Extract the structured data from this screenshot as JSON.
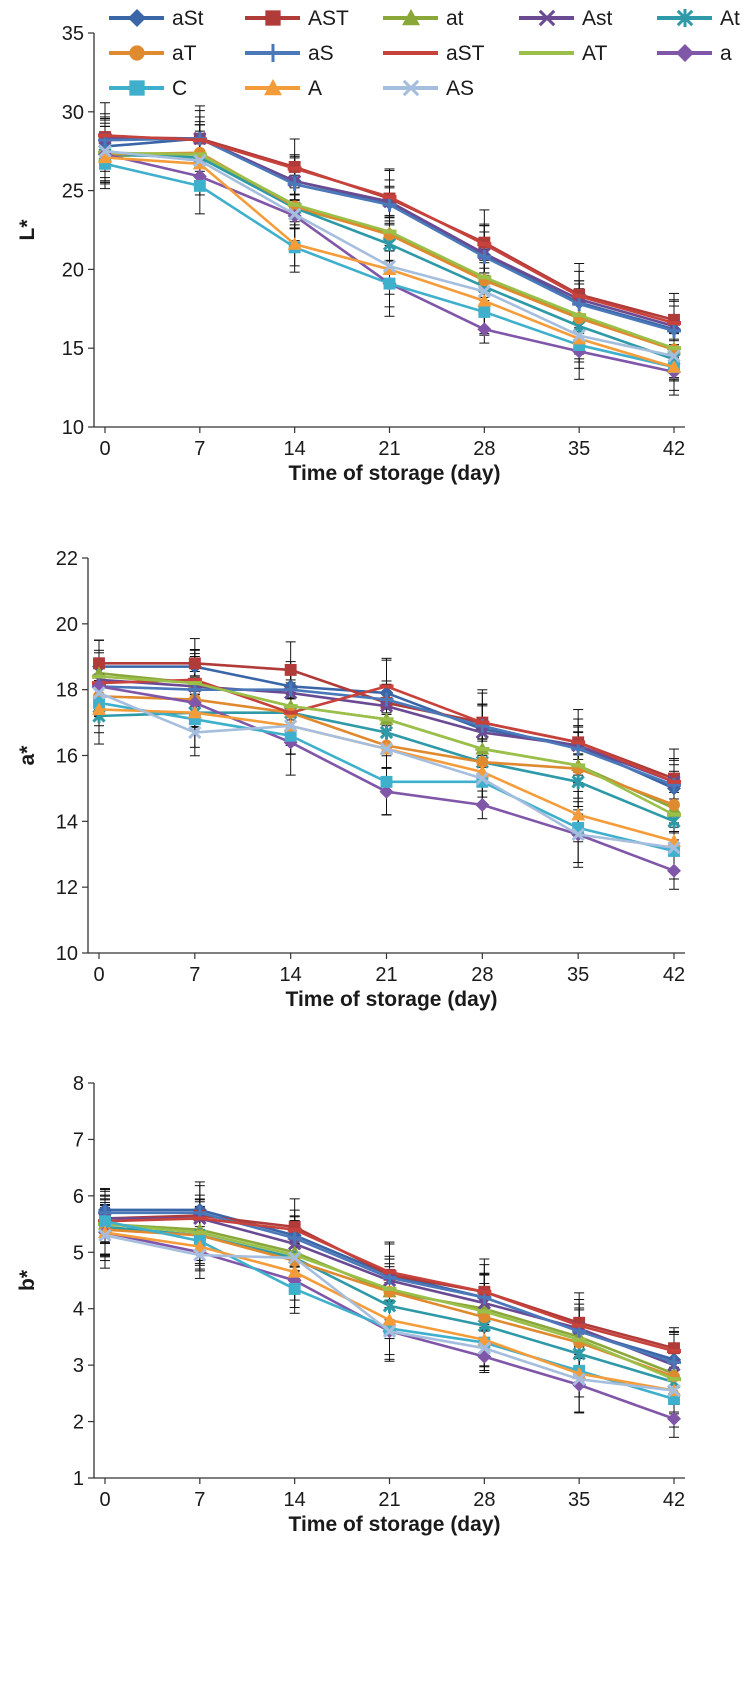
{
  "legend": [
    {
      "name": "aSt",
      "color": "#3a66a8",
      "marker": "diamond"
    },
    {
      "name": "AST",
      "color": "#b03b38",
      "marker": "square"
    },
    {
      "name": "at",
      "color": "#8aa83a",
      "marker": "triangle"
    },
    {
      "name": "Ast",
      "color": "#6a4a92",
      "marker": "x"
    },
    {
      "name": "At",
      "color": "#2e9aa8",
      "marker": "star"
    },
    {
      "name": "aT",
      "color": "#e08a30",
      "marker": "circle"
    },
    {
      "name": "aS",
      "color": "#4a78b8",
      "marker": "plus"
    },
    {
      "name": "aST",
      "color": "#c8423c",
      "marker": "dash"
    },
    {
      "name": "AT",
      "color": "#9ac04a",
      "marker": "dash"
    },
    {
      "name": "a",
      "color": "#8056a8",
      "marker": "diamond"
    },
    {
      "name": "C",
      "color": "#3fb0cc",
      "marker": "square"
    },
    {
      "name": "A",
      "color": "#f59c3a",
      "marker": "triangle"
    },
    {
      "name": "AS",
      "color": "#a6bede",
      "marker": "x"
    }
  ],
  "chart_data": [
    {
      "type": "line",
      "xlabel": "Time of storage (day)",
      "ylabel": "L*",
      "x": [
        0,
        7,
        14,
        21,
        28,
        35,
        42
      ],
      "xticks": [
        "0",
        "7",
        "14",
        "21",
        "28",
        "35",
        "42"
      ],
      "ylim": [
        10,
        35
      ],
      "yticks": [
        "10",
        "15",
        "20",
        "25",
        "30",
        "35"
      ],
      "grid": false,
      "legend": "top",
      "series": [
        {
          "name": "aSt",
          "values": [
            27.8,
            28.3,
            25.6,
            24.2,
            20.9,
            17.9,
            16.2
          ]
        },
        {
          "name": "AST",
          "values": [
            28.4,
            28.3,
            26.5,
            24.5,
            21.7,
            18.4,
            16.8
          ]
        },
        {
          "name": "at",
          "values": [
            27.2,
            27.3,
            23.9,
            22.3,
            19.4,
            17.0,
            15.0
          ]
        },
        {
          "name": "Ast",
          "values": [
            28.3,
            28.3,
            25.6,
            24.3,
            21.0,
            18.1,
            16.4
          ]
        },
        {
          "name": "At",
          "values": [
            27.3,
            27.1,
            23.9,
            21.6,
            18.9,
            16.4,
            14.3
          ]
        },
        {
          "name": "aT",
          "values": [
            27.3,
            27.4,
            24.0,
            22.2,
            19.3,
            16.9,
            14.9
          ]
        },
        {
          "name": "aS",
          "values": [
            28.2,
            28.3,
            25.4,
            24.1,
            20.8,
            17.8,
            16.1
          ]
        },
        {
          "name": "aST",
          "values": [
            28.5,
            28.2,
            26.4,
            24.6,
            21.6,
            18.3,
            16.6
          ]
        },
        {
          "name": "AT",
          "values": [
            27.4,
            27.3,
            24.1,
            22.4,
            19.5,
            17.1,
            15.0
          ]
        },
        {
          "name": "a",
          "values": [
            27.3,
            25.9,
            23.4,
            19.1,
            16.2,
            14.8,
            13.5
          ]
        },
        {
          "name": "C",
          "values": [
            26.7,
            25.3,
            21.4,
            19.1,
            17.3,
            15.2,
            13.8
          ]
        },
        {
          "name": "A",
          "values": [
            27.1,
            26.7,
            21.6,
            20.0,
            18.0,
            15.6,
            13.8
          ]
        },
        {
          "name": "AS",
          "values": [
            27.5,
            26.9,
            23.5,
            20.2,
            18.6,
            15.8,
            14.5
          ]
        }
      ]
    },
    {
      "type": "line",
      "xlabel": "Time of storage (day)",
      "ylabel": "a*",
      "x": [
        0,
        7,
        14,
        21,
        28,
        35,
        42
      ],
      "xticks": [
        "0",
        "7",
        "14",
        "21",
        "28",
        "35",
        "42"
      ],
      "ylim": [
        10,
        22
      ],
      "yticks": [
        "10",
        "12",
        "14",
        "16",
        "18",
        "20",
        "22"
      ],
      "grid": false,
      "series": [
        {
          "name": "aSt",
          "values": [
            18.7,
            18.7,
            18.1,
            17.9,
            16.8,
            16.3,
            15.0
          ]
        },
        {
          "name": "AST",
          "values": [
            18.8,
            18.8,
            18.6,
            17.6,
            17.0,
            16.4,
            15.3
          ]
        },
        {
          "name": "at",
          "values": [
            18.5,
            18.2,
            17.5,
            17.1,
            16.2,
            15.7,
            14.4
          ]
        },
        {
          "name": "Ast",
          "values": [
            18.3,
            18.1,
            17.9,
            17.5,
            16.7,
            16.3,
            15.2
          ]
        },
        {
          "name": "At",
          "values": [
            17.2,
            17.3,
            17.3,
            16.7,
            15.8,
            15.2,
            14.0
          ]
        },
        {
          "name": "aT",
          "values": [
            17.8,
            17.7,
            17.3,
            16.3,
            15.8,
            15.6,
            14.5
          ]
        },
        {
          "name": "aS",
          "values": [
            18.1,
            18.0,
            18.0,
            17.7,
            16.9,
            16.2,
            15.1
          ]
        },
        {
          "name": "aST",
          "values": [
            18.2,
            18.3,
            17.3,
            18.1,
            17.0,
            16.4,
            15.2
          ]
        },
        {
          "name": "AT",
          "values": [
            18.4,
            18.2,
            17.5,
            17.1,
            16.2,
            15.7,
            14.2
          ]
        },
        {
          "name": "a",
          "values": [
            18.1,
            17.6,
            16.4,
            14.9,
            14.5,
            13.6,
            12.5
          ]
        },
        {
          "name": "C",
          "values": [
            17.6,
            17.1,
            16.6,
            15.2,
            15.2,
            13.8,
            13.1
          ]
        },
        {
          "name": "A",
          "values": [
            17.4,
            17.3,
            16.9,
            16.2,
            15.5,
            14.2,
            13.4
          ]
        },
        {
          "name": "AS",
          "values": [
            17.9,
            16.7,
            16.9,
            16.2,
            15.3,
            13.6,
            13.2
          ]
        }
      ]
    },
    {
      "type": "line",
      "xlabel": "Time of storage (day)",
      "ylabel": "b*",
      "x": [
        0,
        7,
        14,
        21,
        28,
        35,
        42
      ],
      "xticks": [
        "0",
        "7",
        "14",
        "21",
        "28",
        "35",
        "42"
      ],
      "ylim": [
        1,
        8
      ],
      "yticks": [
        "1",
        "2",
        "3",
        "4",
        "5",
        "6",
        "7",
        "8"
      ],
      "grid": false,
      "series": [
        {
          "name": "aSt",
          "values": [
            5.75,
            5.75,
            5.3,
            4.6,
            4.2,
            3.6,
            3.1
          ]
        },
        {
          "name": "AST",
          "values": [
            5.6,
            5.65,
            5.45,
            4.6,
            4.3,
            3.75,
            3.3
          ]
        },
        {
          "name": "at",
          "values": [
            5.5,
            5.4,
            5.0,
            4.3,
            4.0,
            3.5,
            2.85
          ]
        },
        {
          "name": "Ast",
          "values": [
            5.6,
            5.6,
            5.15,
            4.5,
            4.1,
            3.65,
            3.0
          ]
        },
        {
          "name": "At",
          "values": [
            5.45,
            5.3,
            4.9,
            4.05,
            3.7,
            3.2,
            2.7
          ]
        },
        {
          "name": "aT",
          "values": [
            5.4,
            5.3,
            4.85,
            4.3,
            3.85,
            3.4,
            2.8
          ]
        },
        {
          "name": "aS",
          "values": [
            5.7,
            5.7,
            5.25,
            4.55,
            4.2,
            3.6,
            3.05
          ]
        },
        {
          "name": "aST",
          "values": [
            5.55,
            5.6,
            5.4,
            4.65,
            4.3,
            3.7,
            3.25
          ]
        },
        {
          "name": "AT",
          "values": [
            5.5,
            5.35,
            4.95,
            4.35,
            3.95,
            3.45,
            2.75
          ]
        },
        {
          "name": "a",
          "values": [
            5.35,
            5.0,
            4.5,
            3.6,
            3.15,
            2.65,
            2.05
          ]
        },
        {
          "name": "C",
          "values": [
            5.55,
            5.2,
            4.35,
            3.65,
            3.4,
            2.9,
            2.4
          ]
        },
        {
          "name": "A",
          "values": [
            5.35,
            5.1,
            4.65,
            3.8,
            3.45,
            2.85,
            2.55
          ]
        },
        {
          "name": "AS",
          "values": [
            5.3,
            4.95,
            4.9,
            3.6,
            3.3,
            2.75,
            2.55
          ]
        }
      ]
    }
  ]
}
